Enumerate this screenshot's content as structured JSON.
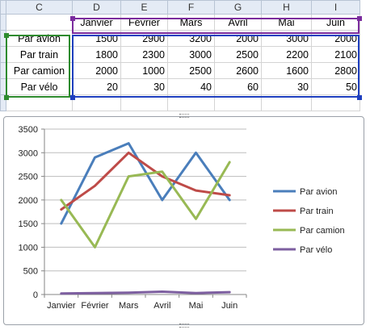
{
  "sheet": {
    "columns": [
      "C",
      "D",
      "E",
      "F",
      "G",
      "H",
      "I"
    ],
    "months": [
      "Janvier",
      "Février",
      "Mars",
      "Avril",
      "Mai",
      "Juin"
    ],
    "rows": [
      {
        "label": "Par avion",
        "values": [
          "1500",
          "2900",
          "3200",
          "2000",
          "3000",
          "2000"
        ]
      },
      {
        "label": "Par train",
        "values": [
          "1800",
          "2300",
          "3000",
          "2500",
          "2200",
          "2100"
        ]
      },
      {
        "label": "Par camion",
        "values": [
          "2000",
          "1000",
          "2500",
          "2600",
          "1600",
          "2800"
        ]
      },
      {
        "label": "Par vélo",
        "values": [
          "20",
          "30",
          "40",
          "60",
          "30",
          "50"
        ]
      }
    ]
  },
  "colors": {
    "selection_green": "#2e8b2e",
    "selection_purple": "#7b2c9e",
    "selection_blue": "#1f3fbf"
  },
  "chart_data": {
    "type": "line",
    "categories": [
      "Janvier",
      "Février",
      "Mars",
      "Avril",
      "Mai",
      "Juin"
    ],
    "ylim": [
      0,
      3500
    ],
    "yticks": [
      "0",
      "500",
      "1000",
      "1500",
      "2000",
      "2500",
      "3000",
      "3500"
    ],
    "grid": true,
    "legend_position": "right",
    "series": [
      {
        "name": "Par avion",
        "color": "#4a7ebb",
        "values": [
          1500,
          2900,
          3200,
          2000,
          3000,
          2000
        ]
      },
      {
        "name": "Par train",
        "color": "#be4b48",
        "values": [
          1800,
          2300,
          3000,
          2500,
          2200,
          2100
        ]
      },
      {
        "name": "Par camion",
        "color": "#98b954",
        "values": [
          2000,
          1000,
          2500,
          2600,
          1600,
          2800
        ]
      },
      {
        "name": "Par vélo",
        "color": "#7d5fa0",
        "values": [
          20,
          30,
          40,
          60,
          30,
          50
        ]
      }
    ]
  }
}
